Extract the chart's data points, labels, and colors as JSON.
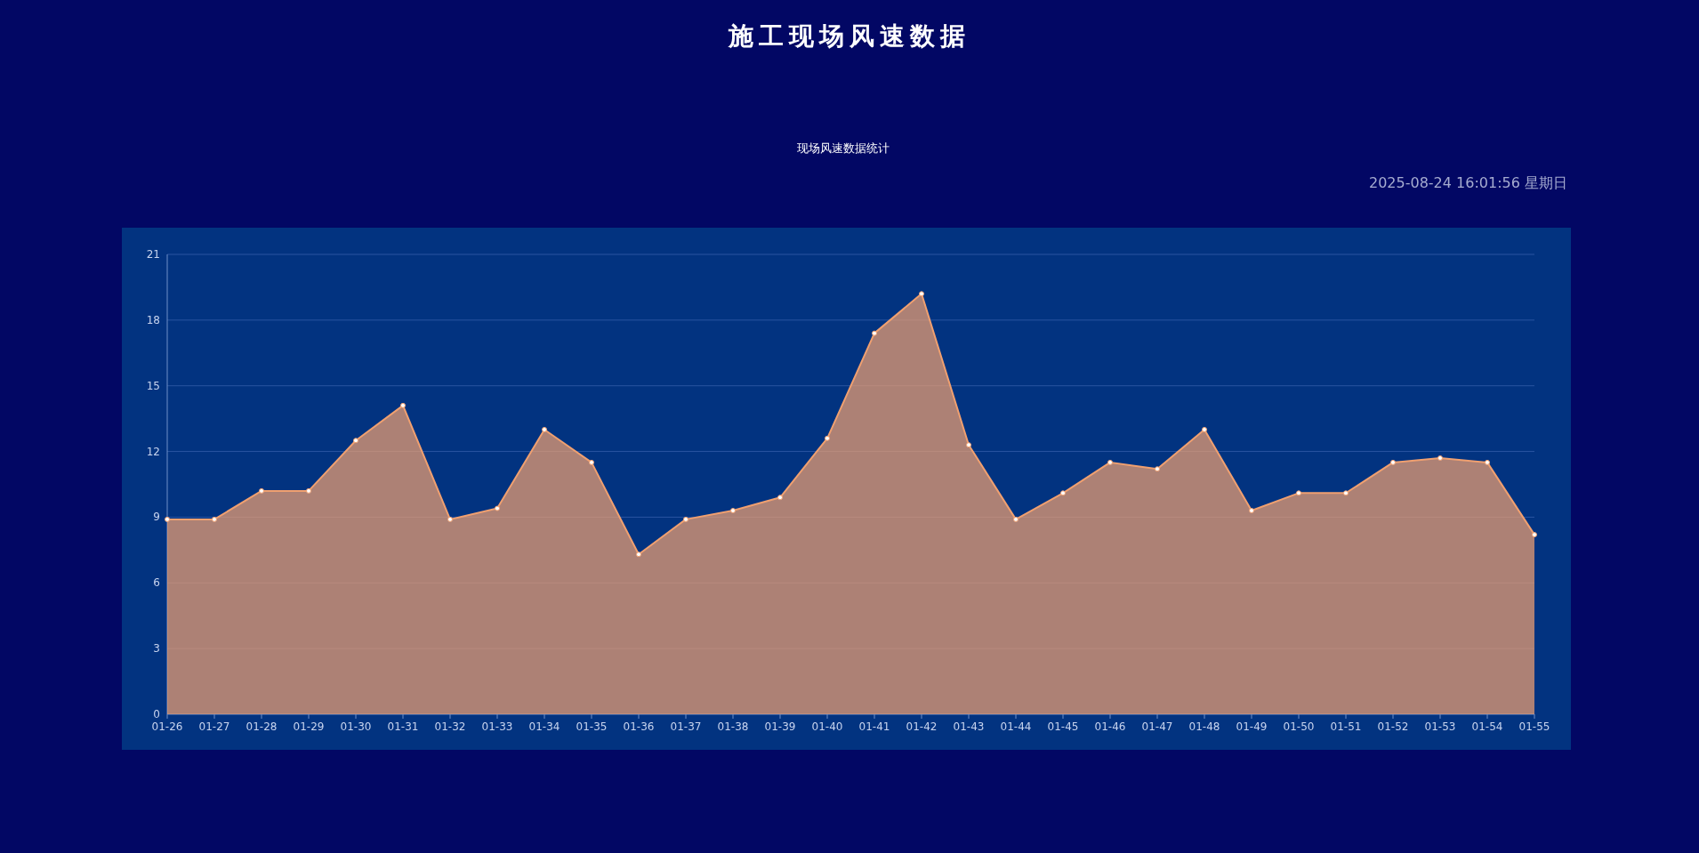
{
  "chart_data": {
    "type": "area",
    "title": "施工现场风速数据",
    "subtitle": "现场风速数据统计",
    "annotations": [
      "2025-08-24 16:01:56 星期日"
    ],
    "categories": [
      "01-26",
      "01-27",
      "01-28",
      "01-29",
      "01-30",
      "01-31",
      "01-32",
      "01-33",
      "01-34",
      "01-35",
      "01-36",
      "01-37",
      "01-38",
      "01-39",
      "01-40",
      "01-41",
      "01-42",
      "01-43",
      "01-44",
      "01-45",
      "01-46",
      "01-47",
      "01-48",
      "01-49",
      "01-50",
      "01-51",
      "01-52",
      "01-53",
      "01-54",
      "01-55"
    ],
    "values": [
      8.9,
      8.9,
      10.2,
      10.2,
      12.5,
      14.1,
      8.9,
      9.4,
      13.0,
      11.5,
      7.3,
      8.9,
      9.3,
      9.9,
      12.6,
      17.4,
      19.2,
      12.3,
      8.9,
      10.1,
      11.5,
      11.2,
      13.0,
      9.3,
      10.1,
      10.1,
      11.5,
      11.7,
      11.5,
      8.2
    ],
    "color": "#f0a070",
    "ylim": [
      0,
      21
    ],
    "yticks": [
      0,
      3,
      6,
      9,
      12,
      15,
      18,
      21
    ],
    "grid": "y",
    "marker": "circle"
  }
}
